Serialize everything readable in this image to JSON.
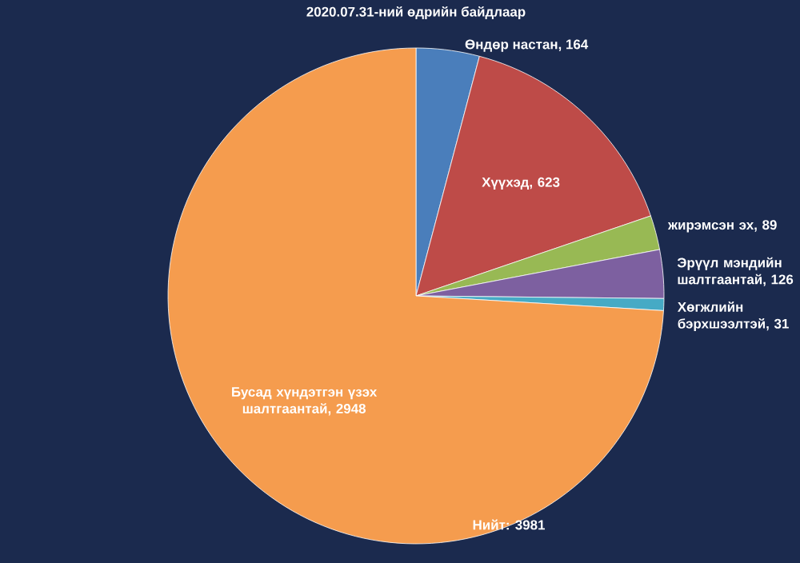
{
  "chart_data": {
    "type": "pie",
    "title": "2020.07.31-ний өдрийн байдлаар",
    "categories": [
      "Өндөр настан",
      "Хүүхэд",
      "жирэмсэн эх",
      "Эрүүл мэндийн шалтгаантай",
      "Хөгжлийн бэрхшээлтэй",
      "Бусад хүндэтгэн үзэх шалтгаантай"
    ],
    "values": [
      164,
      623,
      89,
      126,
      31,
      2948
    ],
    "colors": [
      "#4a7ebb",
      "#be4b48",
      "#98b954",
      "#7d60a0",
      "#46aac5",
      "#f59c4e"
    ],
    "value_labels": [
      ", 164",
      ", 623",
      ", 89",
      ", 126",
      ", 31",
      ", 2948"
    ],
    "annotations": [
      "Нийт:  3981"
    ]
  }
}
